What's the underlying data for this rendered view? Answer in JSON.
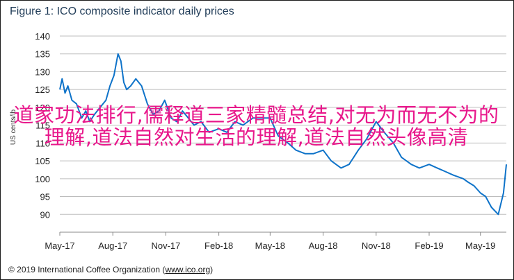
{
  "figure": {
    "title": "Figure 1: ICO composite indicator daily prices",
    "footer_prefix": "© 2019 International Coffee Organization (",
    "footer_link": "www.ico.org",
    "footer_suffix": ")"
  },
  "overlay_text": "道家功法排行,儒释道三家精髓总结,对无为而无不为的理解,道法自然对生活的理解,道法自然头像高清",
  "colors": {
    "line": "#0e73c9",
    "grid": "#bdbdbd",
    "title": "#1f3b57",
    "overlay": "#e8178b"
  },
  "chart_data": {
    "type": "line",
    "title": "Figure 1: ICO composite indicator daily prices",
    "xlabel": "",
    "ylabel": "US cents/lb",
    "ylim": [
      85,
      140
    ],
    "yticks": [
      90,
      95,
      100,
      105,
      110,
      115,
      120,
      125,
      130,
      135,
      140
    ],
    "xlim": [
      "2017-05-01",
      "2019-06-15"
    ],
    "xticks": [
      {
        "date": "2017-05-01",
        "label": "May-17"
      },
      {
        "date": "2017-08-01",
        "label": "Aug-17"
      },
      {
        "date": "2017-11-01",
        "label": "Nov-17"
      },
      {
        "date": "2018-02-01",
        "label": "Feb-18"
      },
      {
        "date": "2018-05-01",
        "label": "May-18"
      },
      {
        "date": "2018-08-01",
        "label": "Aug-18"
      },
      {
        "date": "2018-11-01",
        "label": "Nov-18"
      },
      {
        "date": "2019-02-01",
        "label": "Feb-19"
      },
      {
        "date": "2019-05-01",
        "label": "May-19"
      }
    ],
    "grid": true,
    "series": [
      {
        "x": [
          "2017-05-01",
          "2017-05-05",
          "2017-05-10",
          "2017-05-15",
          "2017-05-22",
          "2017-05-30",
          "2017-06-08",
          "2017-06-15",
          "2017-06-22",
          "2017-06-30",
          "2017-07-10",
          "2017-07-20",
          "2017-07-27",
          "2017-08-03",
          "2017-08-10",
          "2017-08-15",
          "2017-08-20",
          "2017-08-25",
          "2017-09-01",
          "2017-09-10",
          "2017-09-20",
          "2017-09-30",
          "2017-10-10",
          "2017-10-20",
          "2017-10-30",
          "2017-11-10",
          "2017-11-20",
          "2017-11-30",
          "2017-12-10",
          "2017-12-20",
          "2018-01-01",
          "2018-01-15",
          "2018-02-01",
          "2018-02-15",
          "2018-03-01",
          "2018-03-15",
          "2018-04-01",
          "2018-04-15",
          "2018-05-01",
          "2018-05-15",
          "2018-06-01",
          "2018-06-15",
          "2018-07-01",
          "2018-07-15",
          "2018-08-01",
          "2018-08-15",
          "2018-09-01",
          "2018-09-15",
          "2018-10-01",
          "2018-10-15",
          "2018-11-01",
          "2018-11-15",
          "2018-12-01",
          "2018-12-15",
          "2019-01-01",
          "2019-01-15",
          "2019-02-01",
          "2019-02-15",
          "2019-03-01",
          "2019-03-15",
          "2019-04-01",
          "2019-04-10",
          "2019-04-20",
          "2019-05-01",
          "2019-05-10",
          "2019-05-20",
          "2019-06-01",
          "2019-06-10",
          "2019-06-15"
        ],
        "y": [
          125,
          128,
          124,
          126,
          122,
          121,
          117,
          119,
          116,
          118,
          120,
          122,
          126,
          129,
          135,
          133,
          127,
          125,
          126,
          128,
          126,
          121,
          118,
          119,
          122,
          117,
          116,
          119,
          117,
          115,
          116,
          113,
          114,
          113,
          116,
          115,
          117,
          117,
          117,
          112,
          110,
          108,
          107,
          107,
          108,
          105,
          103,
          104,
          108,
          111,
          116,
          113,
          110,
          106,
          104,
          103,
          104,
          103,
          102,
          101,
          100,
          99,
          98,
          96,
          95,
          92,
          90,
          96,
          104
        ]
      }
    ]
  }
}
